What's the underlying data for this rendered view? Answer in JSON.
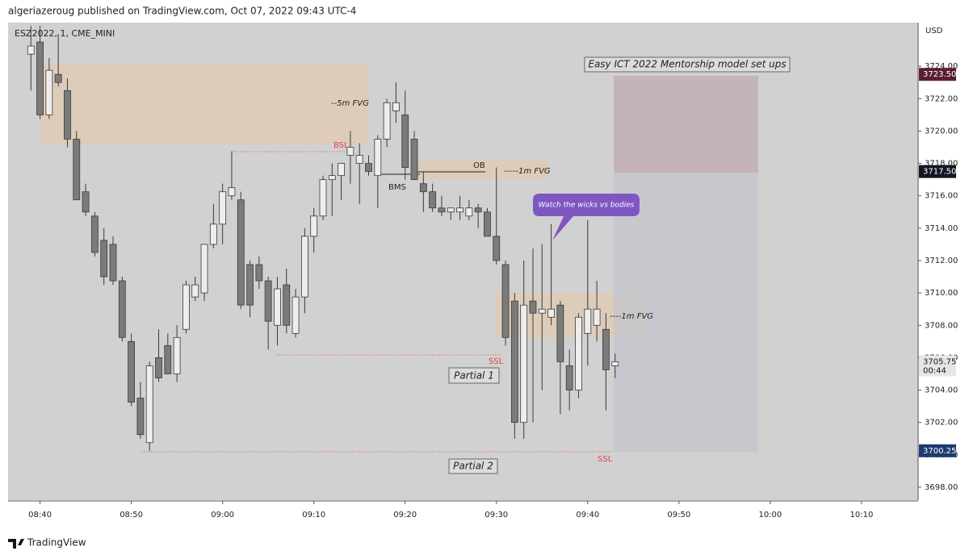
{
  "header": {
    "byline": "algeriazeroug published on TradingView.com, Oct 07, 2022 09:43 UTC-4",
    "symbol": "ESZ2022, 1, CME_MINI",
    "currency": "USD",
    "brand": "TradingView"
  },
  "annotations": {
    "fvg_5m": "--5m FVG",
    "bsl": "BSL",
    "ob": "OB",
    "fvg_1m_a": "-----1m FVG",
    "bms": "BMS",
    "ssl_1": "SSL",
    "ssl_2": "SSL",
    "partial_1": "Partial 1",
    "partial_2": "Partial 2",
    "setup_title": "Easy ICT 2022 Mentorship model set ups",
    "callout": "Watch the wicks vs bodies",
    "fvg_1m_b": "----1m FVG"
  },
  "chart_data": {
    "type": "candlestick",
    "x": [
      519,
      520,
      521,
      522,
      523,
      524,
      525,
      526,
      527,
      528,
      529,
      530,
      531,
      532,
      533,
      534,
      535,
      536,
      537,
      538,
      539,
      540,
      541,
      542,
      543,
      544,
      545,
      546,
      547,
      548,
      549,
      550,
      551,
      552,
      553,
      554,
      555,
      556,
      557,
      558,
      559,
      560,
      561,
      562,
      563,
      564,
      565,
      566,
      567,
      568,
      569,
      570,
      571,
      572,
      573,
      574,
      575,
      576,
      577,
      578,
      579,
      580,
      581,
      582,
      583
    ],
    "open": [
      3724.75,
      3725.5,
      3721.0,
      3723.5,
      3722.5,
      3719.5,
      3716.25,
      3714.75,
      3713.25,
      3713.0,
      3710.75,
      3707.0,
      3703.5,
      3700.75,
      3706.0,
      3706.75,
      3705.0,
      3707.75,
      3709.75,
      3710.0,
      3713.0,
      3714.25,
      3716.0,
      3715.75,
      3711.75,
      3711.75,
      3710.75,
      3708.0,
      3710.5,
      3707.5,
      3709.75,
      3713.5,
      3714.75,
      3717.0,
      3717.25,
      3718.5,
      3718.0,
      3718.0,
      3717.25,
      3719.5,
      3721.25,
      3721.0,
      3719.5,
      3716.75,
      3716.25,
      3715.25,
      3715.0,
      3715.0,
      3714.75,
      3715.25,
      3715.0,
      3713.5,
      3711.75,
      3709.5,
      3702.0,
      3709.5,
      3708.75,
      3708.5,
      3709.25,
      3705.5,
      3704.0,
      3707.5,
      3708.0,
      3707.75,
      3705.5
    ],
    "high": [
      3726.5,
      3726.5,
      3724.5,
      3726.0,
      3723.25,
      3720.0,
      3716.75,
      3715.0,
      3714.0,
      3713.5,
      3711.0,
      3707.5,
      3704.5,
      3705.75,
      3707.75,
      3707.5,
      3708.0,
      3710.75,
      3711.0,
      3713.0,
      3715.5,
      3716.75,
      3718.75,
      3716.25,
      3712.0,
      3712.25,
      3711.0,
      3711.0,
      3711.5,
      3710.25,
      3714.0,
      3715.25,
      3717.25,
      3718.0,
      3718.0,
      3720.0,
      3719.25,
      3718.5,
      3719.75,
      3722.0,
      3723.0,
      3722.5,
      3720.0,
      3717.5,
      3716.75,
      3716.0,
      3715.25,
      3716.0,
      3715.75,
      3715.5,
      3715.25,
      3717.75,
      3712.0,
      3710.0,
      3712.0,
      3712.75,
      3713.0,
      3714.25,
      3709.5,
      3706.5,
      3708.75,
      3714.5,
      3710.75,
      3708.75,
      3706.25
    ],
    "low": [
      3722.5,
      3720.75,
      3720.75,
      3722.75,
      3719.0,
      3715.75,
      3714.75,
      3712.25,
      3710.5,
      3710.5,
      3707.0,
      3703.0,
      3701.0,
      3700.25,
      3704.5,
      3705.0,
      3704.5,
      3707.5,
      3709.5,
      3709.5,
      3712.75,
      3713.0,
      3715.75,
      3709.0,
      3708.5,
      3710.25,
      3706.5,
      3706.75,
      3707.5,
      3707.25,
      3708.75,
      3712.5,
      3714.5,
      3714.75,
      3715.75,
      3716.75,
      3715.5,
      3717.25,
      3715.25,
      3719.0,
      3720.5,
      3717.0,
      3717.0,
      3715.0,
      3715.0,
      3714.75,
      3714.5,
      3714.5,
      3714.5,
      3714.0,
      3713.5,
      3711.75,
      3706.75,
      3701.0,
      3701.0,
      3702.0,
      3704.0,
      3708.0,
      3702.5,
      3702.75,
      3703.5,
      3705.5,
      3707.0,
      3702.75,
      3704.75
    ],
    "close": [
      3725.25,
      3721.0,
      3723.75,
      3723.0,
      3719.5,
      3715.75,
      3715.0,
      3712.5,
      3711.0,
      3710.75,
      3707.25,
      3703.25,
      3701.25,
      3705.5,
      3704.75,
      3705.0,
      3707.25,
      3710.5,
      3710.5,
      3713.0,
      3714.25,
      3716.25,
      3716.5,
      3709.25,
      3709.25,
      3710.75,
      3708.25,
      3710.25,
      3708.0,
      3709.75,
      3713.5,
      3714.75,
      3717.0,
      3717.25,
      3718.0,
      3719.0,
      3718.5,
      3717.5,
      3719.5,
      3721.75,
      3721.75,
      3717.75,
      3717.0,
      3716.25,
      3715.25,
      3715.0,
      3715.25,
      3715.25,
      3715.25,
      3715.0,
      3713.5,
      3712.0,
      3707.25,
      3702.0,
      3709.25,
      3708.75,
      3709.0,
      3709.0,
      3705.75,
      3704.0,
      3708.5,
      3709.0,
      3709.0,
      3705.25,
      3705.75
    ],
    "up_color": "#ededed",
    "down_color": "#7b7b7b",
    "wick_color": "#3a3a3a",
    "xlim": [
      516.5,
      616.2
    ],
    "xticks": [
      {
        "value": 520,
        "label": "08:40"
      },
      {
        "value": 530,
        "label": "08:50"
      },
      {
        "value": 540,
        "label": "09:00"
      },
      {
        "value": 550,
        "label": "09:10"
      },
      {
        "value": 560,
        "label": "09:20"
      },
      {
        "value": 570,
        "label": "09:30"
      },
      {
        "value": 580,
        "label": "09:40"
      },
      {
        "value": 590,
        "label": "09:50"
      },
      {
        "value": 600,
        "label": "10:00"
      },
      {
        "value": 610,
        "label": "10:10"
      }
    ],
    "ylim": [
      3697.2,
      3726.7
    ],
    "yticks": [
      {
        "value": 3698,
        "label": "3698.00"
      },
      {
        "value": 3700,
        "label": "3700.00"
      },
      {
        "value": 3702,
        "label": "3702.00"
      },
      {
        "value": 3704,
        "label": "3704.00"
      },
      {
        "value": 3706,
        "label": "3706.00"
      },
      {
        "value": 3708,
        "label": "3708.00"
      },
      {
        "value": 3710,
        "label": "3710.00"
      },
      {
        "value": 3712,
        "label": "3712.00"
      },
      {
        "value": 3714,
        "label": "3714.00"
      },
      {
        "value": 3716,
        "label": "3716.00"
      },
      {
        "value": 3718,
        "label": "3718.00"
      },
      {
        "value": 3720,
        "label": "3720.00"
      },
      {
        "value": 3722,
        "label": "3722.00"
      },
      {
        "value": 3724,
        "label": "3724.00"
      }
    ],
    "price_labels": [
      {
        "value": 3723.5,
        "label": "3723.50",
        "color": "#5a1e30"
      },
      {
        "value": 3717.5,
        "label": "3717.50",
        "color": "#131722"
      },
      {
        "value": 3705.75,
        "label": "3705.75",
        "color": "#e6e6e6",
        "countdown": "00:44"
      },
      {
        "value": 3700.25,
        "label": "3700.25",
        "color": "#1e3a6e"
      }
    ],
    "grid": false
  }
}
